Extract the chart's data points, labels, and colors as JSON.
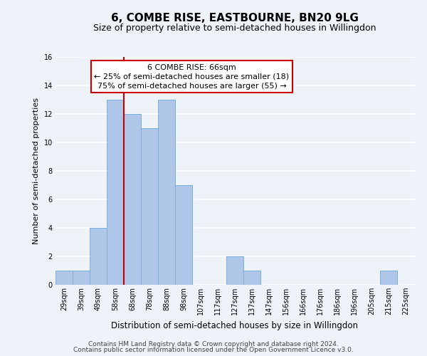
{
  "title": "6, COMBE RISE, EASTBOURNE, BN20 9LG",
  "subtitle": "Size of property relative to semi-detached houses in Willingdon",
  "xlabel": "Distribution of semi-detached houses by size in Willingdon",
  "ylabel": "Number of semi-detached properties",
  "bar_labels": [
    "29sqm",
    "39sqm",
    "49sqm",
    "58sqm",
    "68sqm",
    "78sqm",
    "88sqm",
    "98sqm",
    "107sqm",
    "117sqm",
    "127sqm",
    "137sqm",
    "147sqm",
    "156sqm",
    "166sqm",
    "176sqm",
    "186sqm",
    "196sqm",
    "205sqm",
    "215sqm",
    "225sqm"
  ],
  "bar_values": [
    1,
    1,
    4,
    13,
    12,
    11,
    13,
    7,
    0,
    0,
    2,
    1,
    0,
    0,
    0,
    0,
    0,
    0,
    0,
    1,
    0
  ],
  "bar_color": "#aec6e8",
  "bar_edgecolor": "#7bafd4",
  "highlight_line_color": "#cc0000",
  "highlight_line_xindex": 3,
  "annotation_line1": "6 COMBE RISE: 66sqm",
  "annotation_line2": "← 25% of semi-detached houses are smaller (18)",
  "annotation_line3": "75% of semi-detached houses are larger (55) →",
  "annotation_box_edgecolor": "#cc0000",
  "ylim": [
    0,
    16
  ],
  "yticks": [
    0,
    2,
    4,
    6,
    8,
    10,
    12,
    14,
    16
  ],
  "background_color": "#eef2f9",
  "grid_color": "#ffffff",
  "title_fontsize": 11,
  "subtitle_fontsize": 9,
  "axis_label_fontsize": 8,
  "tick_fontsize": 7,
  "annotation_fontsize": 8,
  "footer_fontsize": 6.5,
  "footer_line1": "Contains HM Land Registry data © Crown copyright and database right 2024.",
  "footer_line2": "Contains public sector information licensed under the Open Government Licence v3.0."
}
